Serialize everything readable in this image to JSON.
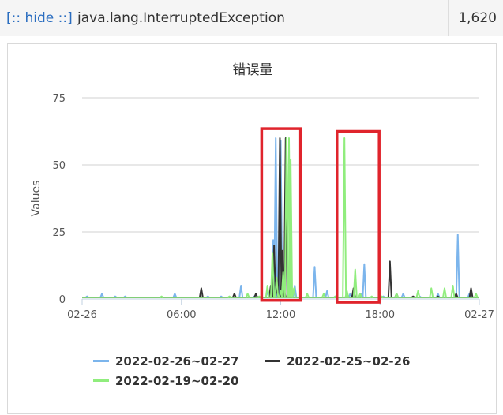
{
  "exception_row": {
    "hide_label": "[:: hide ::]",
    "name": "java.lang.InterruptedException",
    "count": "1,620"
  },
  "chart_data": {
    "type": "line",
    "title": "错误量",
    "xlabel": "",
    "ylabel": "Values",
    "ylim": [
      0,
      75
    ],
    "yticks": [
      0,
      25,
      50,
      75
    ],
    "xlim_hours": [
      0,
      24
    ],
    "xtick_labels": [
      "02-26",
      "06:00",
      "12:00",
      "18:00",
      "02-27"
    ],
    "grid": "horizontal",
    "legend_position": "bottom",
    "series": [
      {
        "name": "2022-02-26~02-27",
        "color": "#7cb5ec",
        "points": [
          [
            0.3,
            1
          ],
          [
            1.2,
            2
          ],
          [
            2.0,
            1
          ],
          [
            2.6,
            1
          ],
          [
            5.6,
            2
          ],
          [
            7.6,
            1
          ],
          [
            8.4,
            1
          ],
          [
            9.6,
            5
          ],
          [
            10.4,
            1
          ],
          [
            11.2,
            3
          ],
          [
            11.55,
            22
          ],
          [
            11.7,
            60
          ],
          [
            11.85,
            5
          ],
          [
            12.0,
            59
          ],
          [
            12.2,
            2
          ],
          [
            12.85,
            5
          ],
          [
            14.05,
            12
          ],
          [
            14.8,
            3
          ],
          [
            15.3,
            1
          ],
          [
            16.2,
            2
          ],
          [
            16.9,
            2
          ],
          [
            17.05,
            13
          ],
          [
            18.2,
            1
          ],
          [
            19.4,
            2
          ],
          [
            20.4,
            1
          ],
          [
            21.5,
            2
          ],
          [
            22.7,
            24
          ],
          [
            23.4,
            2
          ]
        ]
      },
      {
        "name": "2022-02-25~02-26",
        "color": "#333333",
        "points": [
          [
            7.2,
            4
          ],
          [
            9.2,
            2
          ],
          [
            10.5,
            2
          ],
          [
            11.4,
            5
          ],
          [
            11.6,
            20
          ],
          [
            11.75,
            4
          ],
          [
            11.95,
            60
          ],
          [
            12.1,
            18
          ],
          [
            12.2,
            4
          ],
          [
            12.3,
            60
          ],
          [
            12.5,
            3
          ],
          [
            16.4,
            4
          ],
          [
            18.6,
            14
          ],
          [
            19.0,
            2
          ],
          [
            20.0,
            1
          ],
          [
            21.5,
            1
          ],
          [
            22.6,
            2
          ],
          [
            23.5,
            4
          ]
        ]
      },
      {
        "name": "2022-02-19~02-20",
        "color": "#90ed7d",
        "points": [
          [
            4.8,
            1
          ],
          [
            8.9,
            1
          ],
          [
            10.0,
            2
          ],
          [
            10.7,
            1
          ],
          [
            11.2,
            5
          ],
          [
            11.5,
            17
          ],
          [
            11.75,
            8
          ],
          [
            12.0,
            3
          ],
          [
            12.15,
            10
          ],
          [
            12.35,
            60
          ],
          [
            12.5,
            60
          ],
          [
            12.6,
            52
          ],
          [
            12.8,
            4
          ],
          [
            13.6,
            2
          ],
          [
            14.6,
            2
          ],
          [
            15.3,
            1
          ],
          [
            15.85,
            60
          ],
          [
            16.0,
            3
          ],
          [
            16.5,
            11
          ],
          [
            16.8,
            2
          ],
          [
            17.5,
            1
          ],
          [
            18.1,
            1
          ],
          [
            19.0,
            2
          ],
          [
            20.3,
            3
          ],
          [
            21.1,
            4
          ],
          [
            21.9,
            4
          ],
          [
            22.4,
            5
          ],
          [
            23.8,
            2
          ]
        ]
      }
    ],
    "annotations": [
      {
        "type": "rect",
        "color": "#e0242c",
        "x_range_hours": [
          10.85,
          13.2
        ],
        "y_range": [
          -0.5,
          63.5
        ]
      },
      {
        "type": "rect",
        "color": "#e0242c",
        "x_range_hours": [
          15.4,
          17.95
        ],
        "y_range": [
          -1.2,
          62.5
        ]
      }
    ]
  }
}
